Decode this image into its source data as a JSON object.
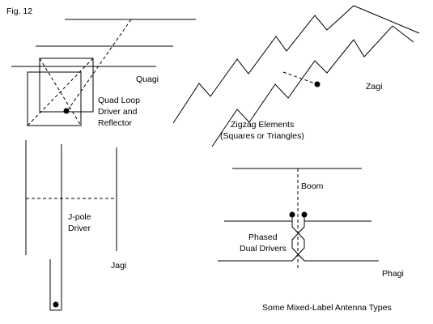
{
  "figure_number": "Fig. 12",
  "caption": "Some Mixed-Label Antenna Types",
  "labels": {
    "quagi": "Quagi",
    "quad_loop_line1": "Quad Loop",
    "quad_loop_line2": "Driver and",
    "quad_loop_line3": "Reflector",
    "zagi": "Zagi",
    "zigzag_line1": "Zigzag Elements",
    "zigzag_line2": "(Squares or Triangles)",
    "jpole_line1": "J-pole",
    "jpole_line2": "Driver",
    "jagi": "Jagi",
    "boom": "Boom",
    "phased_line1": "Phased",
    "phased_line2": "Dual Drivers",
    "phagi": "Phagi"
  }
}
